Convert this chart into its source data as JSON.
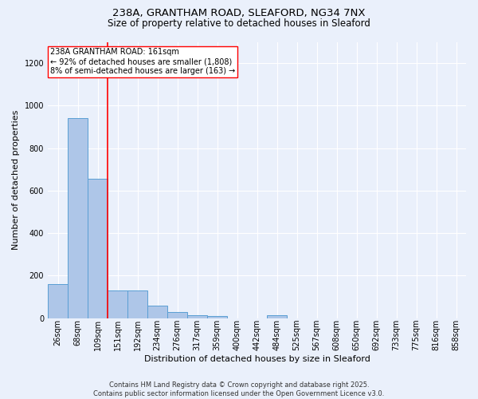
{
  "title_line1": "238A, GRANTHAM ROAD, SLEAFORD, NG34 7NX",
  "title_line2": "Size of property relative to detached houses in Sleaford",
  "xlabel": "Distribution of detached houses by size in Sleaford",
  "ylabel": "Number of detached properties",
  "categories": [
    "26sqm",
    "68sqm",
    "109sqm",
    "151sqm",
    "192sqm",
    "234sqm",
    "276sqm",
    "317sqm",
    "359sqm",
    "400sqm",
    "442sqm",
    "484sqm",
    "525sqm",
    "567sqm",
    "608sqm",
    "650sqm",
    "692sqm",
    "733sqm",
    "775sqm",
    "816sqm",
    "858sqm"
  ],
  "values": [
    160,
    940,
    655,
    130,
    130,
    57,
    30,
    15,
    8,
    0,
    0,
    13,
    0,
    0,
    0,
    0,
    0,
    0,
    0,
    0,
    0
  ],
  "bar_color": "#aec6e8",
  "bar_edge_color": "#5a9fd4",
  "vline_x_index": 3,
  "vline_color": "red",
  "annotation_text": "238A GRANTHAM ROAD: 161sqm\n← 92% of detached houses are smaller (1,808)\n8% of semi-detached houses are larger (163) →",
  "annotation_box_color": "white",
  "annotation_box_edge_color": "red",
  "ylim": [
    0,
    1300
  ],
  "yticks": [
    0,
    200,
    400,
    600,
    800,
    1000,
    1200
  ],
  "background_color": "#eaf0fb",
  "grid_color": "white",
  "footnote": "Contains HM Land Registry data © Crown copyright and database right 2025.\nContains public sector information licensed under the Open Government Licence v3.0.",
  "fig_width": 6.0,
  "fig_height": 5.0,
  "title_fontsize": 9.5,
  "subtitle_fontsize": 8.5,
  "xlabel_fontsize": 8,
  "ylabel_fontsize": 8,
  "tick_fontsize": 7,
  "annotation_fontsize": 7,
  "footnote_fontsize": 6
}
